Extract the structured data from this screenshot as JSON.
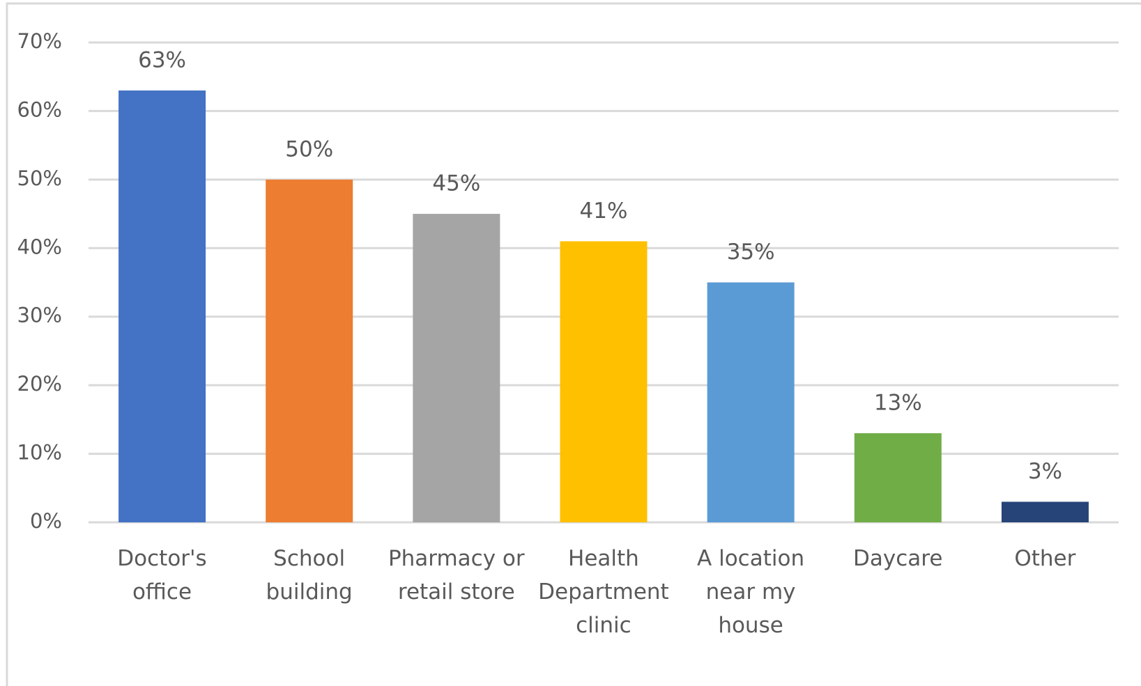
{
  "chart_data": {
    "type": "bar",
    "categories": [
      "Doctor's\noffice",
      "School\nbuilding",
      "Pharmacy or\nretail store",
      "Health\nDepartment\nclinic",
      "A location\nnear my\nhouse",
      "Daycare",
      "Other"
    ],
    "values": [
      63,
      50,
      45,
      41,
      35,
      13,
      3
    ],
    "value_labels": [
      "63%",
      "50%",
      "45%",
      "41%",
      "35%",
      "13%",
      "3%"
    ],
    "colors": [
      "#4472c4",
      "#ed7d31",
      "#a5a5a5",
      "#ffc000",
      "#5b9bd5",
      "#70ad47",
      "#264478"
    ],
    "ylim": [
      0,
      70
    ],
    "yticks": [
      {
        "value": 0,
        "label": "0%"
      },
      {
        "value": 10,
        "label": "10%"
      },
      {
        "value": 20,
        "label": "20%"
      },
      {
        "value": 30,
        "label": "30%"
      },
      {
        "value": 40,
        "label": "40%"
      },
      {
        "value": 50,
        "label": "50%"
      },
      {
        "value": 60,
        "label": "60%"
      },
      {
        "value": 70,
        "label": "70%"
      }
    ],
    "grid": true
  }
}
